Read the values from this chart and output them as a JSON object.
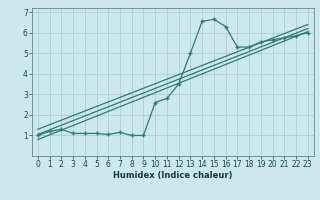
{
  "xlabel": "Humidex (Indice chaleur)",
  "background_color": "#cce8ec",
  "line_color": "#2e7d6e",
  "grid_color": "#aacfd4",
  "xlim": [
    -0.5,
    23.5
  ],
  "ylim": [
    0,
    7.2
  ],
  "xticks": [
    0,
    1,
    2,
    3,
    4,
    5,
    6,
    7,
    8,
    9,
    10,
    11,
    12,
    13,
    14,
    15,
    16,
    17,
    18,
    19,
    20,
    21,
    22,
    23
  ],
  "yticks": [
    1,
    2,
    3,
    4,
    5,
    6,
    7
  ],
  "curve1_x": [
    0,
    1,
    2,
    3,
    4,
    5,
    6,
    7,
    8,
    9,
    10,
    11,
    12,
    13,
    14,
    15,
    16,
    17,
    18,
    19,
    20,
    21,
    22,
    23
  ],
  "curve1_y": [
    1.0,
    1.2,
    1.3,
    1.1,
    1.1,
    1.1,
    1.05,
    1.15,
    1.0,
    1.0,
    2.6,
    2.8,
    3.5,
    5.0,
    6.55,
    6.65,
    6.3,
    5.3,
    5.3,
    5.55,
    5.65,
    5.75,
    5.85,
    6.0
  ],
  "line1_x": [
    0,
    23
  ],
  "line1_y": [
    0.8,
    6.05
  ],
  "line2_x": [
    0,
    23
  ],
  "line2_y": [
    1.05,
    6.2
  ],
  "line3_x": [
    0,
    23
  ],
  "line3_y": [
    1.3,
    6.4
  ],
  "xlabel_fontsize": 6,
  "tick_fontsize": 5.5
}
